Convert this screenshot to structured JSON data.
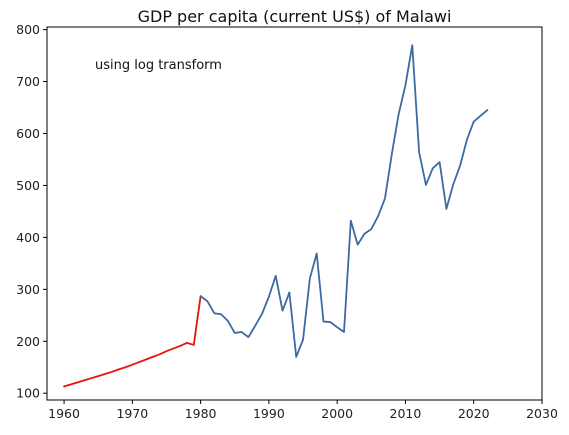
{
  "chart_data": {
    "type": "line",
    "title": "GDP per capita (current US$) of Malawi",
    "xlabel": "",
    "ylabel": "",
    "annotation": "using log transform",
    "xlim": [
      1957.5,
      2030
    ],
    "ylim": [
      87,
      805
    ],
    "xticks": [
      1960,
      1970,
      1980,
      1990,
      2000,
      2010,
      2020,
      2030
    ],
    "yticks": [
      100,
      200,
      300,
      400,
      500,
      600,
      700,
      800
    ],
    "grid": false,
    "series": [
      {
        "color": "#e8120c",
        "x": [
          1960,
          1961,
          1962,
          1963,
          1964,
          1965,
          1966,
          1967,
          1968,
          1969,
          1970,
          1971,
          1972,
          1973,
          1974,
          1975,
          1976,
          1977,
          1978,
          1979,
          1980
        ],
        "y": [
          113,
          117,
          121,
          125,
          129,
          133,
          137,
          141,
          146,
          150,
          155,
          160,
          165,
          170,
          175,
          181,
          186,
          191,
          197,
          193,
          287
        ]
      },
      {
        "color": "#3d6aa2",
        "x": [
          1980,
          1981,
          1982,
          1983,
          1984,
          1985,
          1986,
          1987,
          1988,
          1989,
          1990,
          1991,
          1992,
          1993,
          1994,
          1995,
          1996,
          1997,
          1998,
          1999,
          2000,
          2001,
          2002,
          2003,
          2004,
          2005,
          2006,
          2007,
          2008,
          2009,
          2010,
          2011,
          2012,
          2013,
          2014,
          2015,
          2016,
          2017,
          2018,
          2019,
          2020,
          2021,
          2022
        ],
        "y": [
          287,
          277,
          254,
          252,
          239,
          216,
          218,
          208,
          230,
          253,
          286,
          326,
          259,
          294,
          170,
          203,
          321,
          369,
          238,
          237,
          227,
          218,
          432,
          386,
          407,
          416,
          441,
          475,
          560,
          637,
          693,
          770,
          564,
          501,
          533,
          545,
          455,
          502,
          538,
          588,
          623,
          634,
          645
        ]
      }
    ]
  }
}
